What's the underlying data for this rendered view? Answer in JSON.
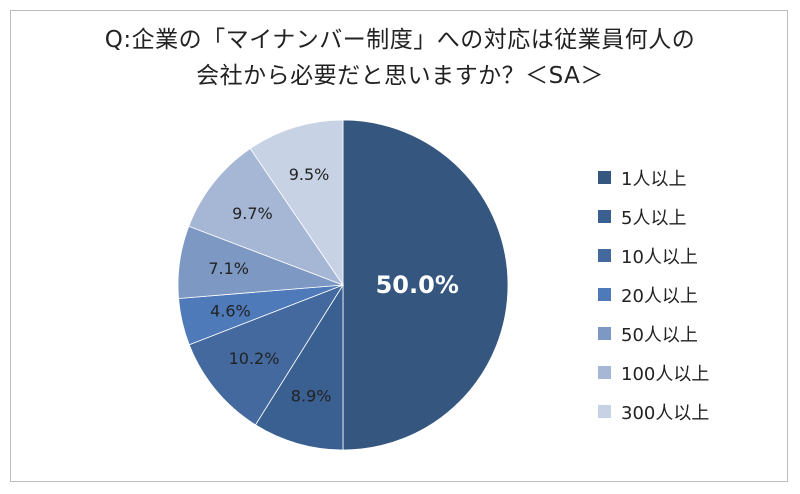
{
  "chart_data": {
    "type": "pie",
    "title_line1": "Q:企業の「マイナンバー制度」への対応は従業員何人の",
    "title_line2": "会社から必要だと思いますか？＜SA＞",
    "slices": [
      {
        "label": "1人以上",
        "value": 50.0,
        "value_label": "50.0%",
        "color": "#34567f"
      },
      {
        "label": "5人以上",
        "value": 8.9,
        "value_label": "8.9%",
        "color": "#3a5f91"
      },
      {
        "label": "10人以上",
        "value": 10.2,
        "value_label": "10.2%",
        "color": "#43699f"
      },
      {
        "label": "20人以上",
        "value": 4.6,
        "value_label": "4.6%",
        "color": "#4f7ab9"
      },
      {
        "label": "50人以上",
        "value": 7.1,
        "value_label": "7.1%",
        "color": "#7d98c3"
      },
      {
        "label": "100人以上",
        "value": 9.7,
        "value_label": "9.7%",
        "color": "#a6b6d5"
      },
      {
        "label": "300人以上",
        "value": 9.5,
        "value_label": "9.5%",
        "color": "#c8d2e5"
      }
    ],
    "legend_position": "right"
  }
}
